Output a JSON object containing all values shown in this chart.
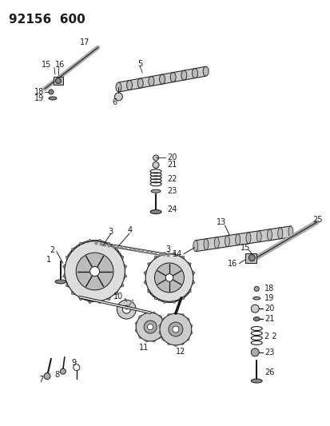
{
  "title": "92156  600",
  "bg_color": "#ffffff",
  "line_color": "#1a1a1a",
  "title_fontsize": 11,
  "label_fontsize": 7,
  "fig_width": 4.14,
  "fig_height": 5.33,
  "dpi": 100
}
